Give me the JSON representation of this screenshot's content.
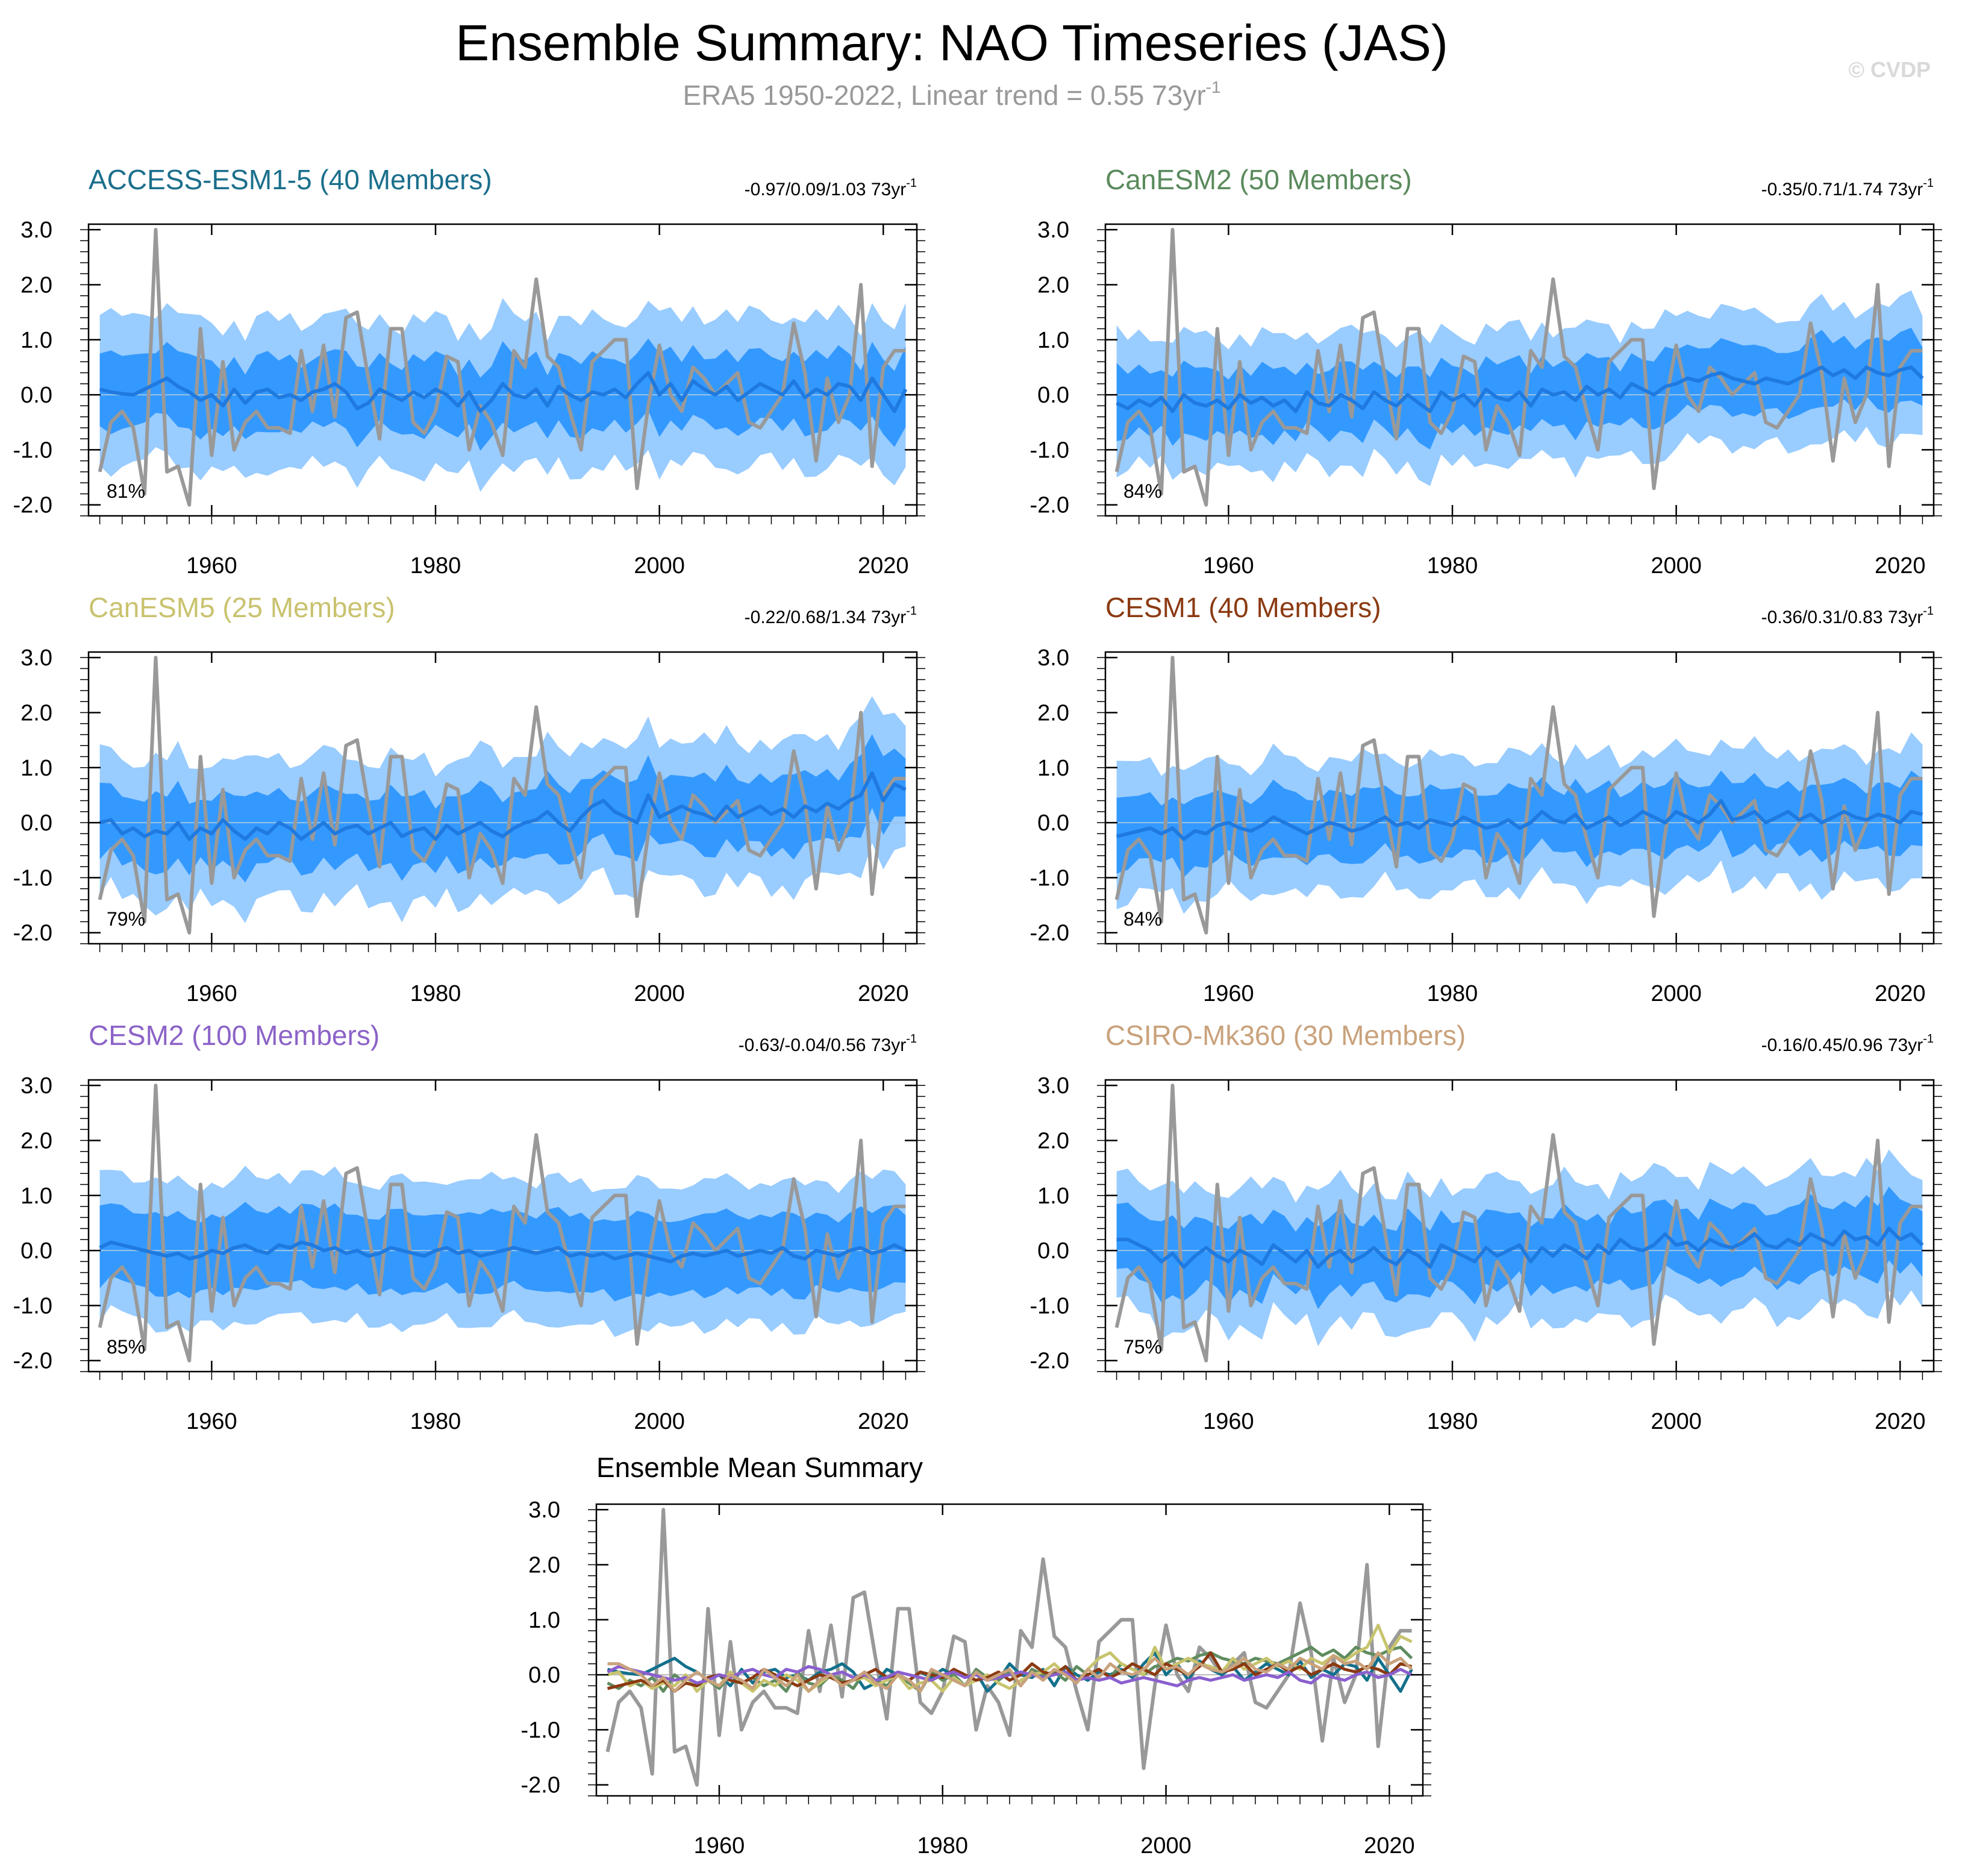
{
  "figure": {
    "title": "Ensemble Summary: NAO Timeseries (JAS)",
    "subtitle_main": "ERA5 1950-2022, Linear trend = 0.55 73yr",
    "subtitle_sup": "-1",
    "copyright": "© CVDP",
    "trend_unit": " 73yr",
    "trend_sup": "-1"
  },
  "colors": {
    "outer_band": "#99ccff",
    "inner_band": "#3399ff",
    "ensemble_mean": "#1f7ae0",
    "observed": "#999999",
    "zero_line": "#9ac3e8"
  },
  "chart_data": [
    {
      "type": "line",
      "title": "ACCESS-ESM1-5 (40 Members)",
      "title_color": "#1b6f8c",
      "line_color": "#13708c",
      "trend_range": "-0.97/0.09/1.03",
      "percent_label": "81%",
      "xlim": [
        1949,
        2023
      ],
      "ylim": [
        -2.2,
        3.1
      ],
      "xticks": [
        "1960",
        "1980",
        "2000",
        "2020"
      ],
      "yticks": [
        "3.0",
        "2.0",
        "1.0",
        "0.0",
        "-1.0",
        "-2.0"
      ],
      "ensemble_mean_base": [
        0.1,
        0.05,
        0.02,
        0.0,
        0.1,
        0.2,
        0.3,
        0.15,
        0.05,
        -0.1,
        0.0,
        -0.2,
        0.1,
        -0.15,
        0.05,
        0.1,
        -0.05,
        0.0,
        -0.1,
        0.05,
        0.1,
        0.2,
        0.05,
        -0.25,
        -0.15,
        0.1,
        0.0,
        -0.1,
        0.05,
        -0.05,
        0.1,
        0.0,
        -0.2,
        0.05,
        -0.3,
        -0.1,
        0.2,
        0.0,
        -0.05,
        0.1,
        -0.2,
        0.15,
        0.0,
        -0.1,
        0.05,
        0.0,
        0.1,
        -0.05,
        0.2,
        0.4,
        0.0,
        0.2,
        -0.1,
        0.25,
        0.1,
        0.0,
        0.15,
        -0.1,
        0.05,
        0.2,
        0.1,
        0.0,
        0.25,
        -0.05,
        0.1,
        0.0,
        0.2,
        0.15,
        -0.1,
        0.3,
        0.0,
        -0.3,
        0.1
      ],
      "outer_half_width": 1.35,
      "inner_half_width": 0.65,
      "band_variation": 0.25,
      "band_phase": 0
    },
    {
      "type": "line",
      "title": "CanESM2 (50 Members)",
      "title_color": "#5a8a5c",
      "line_color": "#5f8c60",
      "trend_range": "-0.35/0.71/1.74",
      "percent_label": "84%",
      "xlim": [
        1949,
        2023
      ],
      "ylim": [
        -2.2,
        3.1
      ],
      "xticks": [
        "1960",
        "1980",
        "2000",
        "2020"
      ],
      "yticks": [
        "3.0",
        "2.0",
        "1.0",
        "0.0",
        "-1.0",
        "-2.0"
      ],
      "ensemble_mean_base": [
        -0.15,
        -0.25,
        -0.1,
        -0.2,
        -0.05,
        -0.3,
        0.0,
        -0.15,
        -0.2,
        -0.1,
        -0.25,
        0.0,
        -0.15,
        -0.05,
        -0.2,
        -0.1,
        -0.3,
        0.05,
        -0.15,
        -0.2,
        0.0,
        -0.1,
        -0.25,
        0.05,
        -0.1,
        -0.2,
        0.0,
        -0.15,
        -0.3,
        0.05,
        -0.1,
        0.0,
        -0.2,
        0.1,
        -0.05,
        -0.1,
        0.05,
        -0.2,
        0.1,
        0.0,
        0.05,
        -0.1,
        0.15,
        0.0,
        0.1,
        -0.05,
        0.2,
        0.1,
        0.0,
        0.15,
        0.2,
        0.3,
        0.25,
        0.35,
        0.4,
        0.3,
        0.25,
        0.2,
        0.3,
        0.25,
        0.2,
        0.3,
        0.4,
        0.5,
        0.35,
        0.45,
        0.3,
        0.5,
        0.4,
        0.35,
        0.45,
        0.5,
        0.3
      ],
      "outer_half_width": 1.2,
      "inner_half_width": 0.6,
      "band_variation": 0.25,
      "band_phase": 1.3
    },
    {
      "type": "line",
      "title": "CanESM5 (25 Members)",
      "title_color": "#c9c26e",
      "line_color": "#c8c46e",
      "trend_range": "-0.22/0.68/1.34",
      "percent_label": "79%",
      "xlim": [
        1949,
        2023
      ],
      "ylim": [
        -2.2,
        3.1
      ],
      "xticks": [
        "1960",
        "1980",
        "2000",
        "2020"
      ],
      "yticks": [
        "3.0",
        "2.0",
        "1.0",
        "0.0",
        "-1.0",
        "-2.0"
      ],
      "ensemble_mean_base": [
        0.0,
        0.05,
        -0.2,
        -0.1,
        -0.25,
        -0.15,
        -0.2,
        0.0,
        -0.3,
        -0.1,
        -0.2,
        0.05,
        -0.15,
        -0.3,
        -0.1,
        -0.2,
        0.0,
        -0.1,
        -0.3,
        -0.15,
        0.0,
        -0.2,
        -0.1,
        -0.05,
        -0.2,
        -0.1,
        0.0,
        -0.25,
        -0.15,
        -0.1,
        -0.3,
        -0.05,
        -0.2,
        -0.1,
        0.0,
        -0.15,
        -0.25,
        -0.1,
        0.0,
        0.05,
        0.2,
        0.0,
        -0.15,
        0.1,
        0.3,
        0.4,
        0.2,
        0.1,
        0.0,
        0.5,
        0.1,
        0.2,
        0.3,
        0.2,
        0.15,
        0.05,
        0.3,
        0.1,
        0.2,
        0.3,
        0.15,
        0.25,
        0.1,
        0.3,
        0.2,
        0.35,
        0.25,
        0.4,
        0.5,
        0.9,
        0.4,
        0.7,
        0.6
      ],
      "outer_half_width": 1.3,
      "inner_half_width": 0.65,
      "band_variation": 0.3,
      "band_phase": 2.1
    },
    {
      "type": "line",
      "title": "CESM1 (40 Members)",
      "title_color": "#8b3a12",
      "line_color": "#8b3a12",
      "trend_range": "-0.36/0.31/0.83",
      "percent_label": "84%",
      "xlim": [
        1949,
        2023
      ],
      "ylim": [
        -2.2,
        3.1
      ],
      "xticks": [
        "1960",
        "1980",
        "2000",
        "2020"
      ],
      "yticks": [
        "3.0",
        "2.0",
        "1.0",
        "0.0",
        "-1.0",
        "-2.0"
      ],
      "ensemble_mean_base": [
        -0.25,
        -0.2,
        -0.15,
        -0.1,
        -0.2,
        -0.1,
        -0.3,
        -0.15,
        -0.2,
        -0.05,
        0.0,
        -0.1,
        -0.15,
        -0.05,
        0.1,
        0.0,
        -0.1,
        -0.2,
        -0.1,
        0.0,
        -0.05,
        -0.15,
        -0.1,
        0.0,
        0.1,
        -0.05,
        0.0,
        -0.1,
        0.05,
        0.0,
        -0.05,
        0.1,
        0.0,
        -0.1,
        -0.05,
        0.05,
        -0.1,
        0.0,
        0.2,
        0.05,
        0.0,
        0.15,
        -0.1,
        0.0,
        0.1,
        -0.05,
        0.05,
        0.2,
        0.1,
        0.0,
        0.2,
        0.1,
        0.0,
        0.15,
        0.4,
        0.05,
        0.1,
        0.2,
        0.0,
        0.1,
        0.2,
        0.05,
        0.15,
        0.0,
        0.1,
        0.2,
        0.1,
        0.05,
        0.15,
        0.1,
        0.0,
        0.2,
        0.15
      ],
      "outer_half_width": 1.2,
      "inner_half_width": 0.6,
      "band_variation": 0.25,
      "band_phase": 0.7
    },
    {
      "type": "line",
      "title": "CESM2 (100 Members)",
      "title_color": "#8c63c8",
      "line_color": "#8a5fcf",
      "trend_range": "-0.63/-0.04/0.56",
      "percent_label": "85%",
      "xlim": [
        1949,
        2023
      ],
      "ylim": [
        -2.2,
        3.1
      ],
      "xticks": [
        "1960",
        "1980",
        "2000",
        "2020"
      ],
      "yticks": [
        "3.0",
        "2.0",
        "1.0",
        "0.0",
        "-1.0",
        "-2.0"
      ],
      "ensemble_mean_base": [
        0.05,
        0.15,
        0.1,
        0.05,
        0.0,
        -0.05,
        -0.1,
        -0.05,
        -0.15,
        -0.1,
        0.0,
        -0.05,
        0.05,
        0.1,
        0.0,
        -0.05,
        0.1,
        0.05,
        0.15,
        0.1,
        0.0,
        0.05,
        -0.05,
        0.0,
        -0.1,
        -0.05,
        0.05,
        0.0,
        -0.05,
        -0.1,
        0.0,
        0.05,
        -0.05,
        0.0,
        -0.1,
        -0.05,
        0.0,
        0.05,
        0.0,
        -0.05,
        0.0,
        0.05,
        -0.1,
        -0.05,
        -0.1,
        -0.05,
        -0.15,
        -0.1,
        -0.05,
        -0.1,
        -0.15,
        -0.2,
        -0.1,
        -0.05,
        -0.1,
        -0.05,
        0.0,
        -0.1,
        -0.05,
        0.0,
        -0.05,
        0.05,
        -0.1,
        -0.15,
        0.0,
        -0.05,
        -0.1,
        0.0,
        0.05,
        -0.05,
        0.0,
        0.1,
        0.0
      ],
      "outer_half_width": 1.3,
      "inner_half_width": 0.7,
      "band_variation": 0.2,
      "band_phase": 1.9
    },
    {
      "type": "line",
      "title": "CSIRO-Mk360 (30 Members)",
      "title_color": "#c9a27c",
      "line_color": "#c9a27c",
      "trend_range": "-0.16/0.45/0.96",
      "percent_label": "75%",
      "xlim": [
        1949,
        2023
      ],
      "ylim": [
        -2.2,
        3.1
      ],
      "xticks": [
        "1960",
        "1980",
        "2000",
        "2020"
      ],
      "yticks": [
        "3.0",
        "2.0",
        "1.0",
        "0.0",
        "-1.0",
        "-2.0"
      ],
      "ensemble_mean_base": [
        0.2,
        0.2,
        0.1,
        0.0,
        -0.2,
        -0.05,
        -0.3,
        -0.1,
        0.05,
        -0.1,
        -0.2,
        0.0,
        -0.1,
        -0.25,
        0.1,
        -0.05,
        -0.2,
        0.0,
        -0.3,
        -0.1,
        0.0,
        -0.2,
        -0.1,
        0.05,
        -0.15,
        -0.25,
        0.0,
        -0.1,
        -0.3,
        0.1,
        0.0,
        -0.1,
        -0.2,
        0.05,
        -0.1,
        0.0,
        0.1,
        -0.2,
        0.05,
        -0.1,
        0.1,
        0.0,
        -0.15,
        0.1,
        -0.05,
        0.2,
        0.05,
        0.0,
        0.1,
        0.3,
        0.1,
        0.15,
        0.0,
        0.2,
        0.1,
        0.05,
        0.15,
        0.3,
        0.1,
        0.05,
        0.2,
        0.1,
        0.3,
        0.2,
        0.1,
        0.35,
        0.2,
        0.25,
        0.1,
        0.4,
        0.2,
        0.3,
        0.1
      ],
      "outer_half_width": 1.25,
      "inner_half_width": 0.65,
      "band_variation": 0.3,
      "band_phase": 2.8
    },
    {
      "type": "line",
      "title": "Ensemble Mean Summary",
      "title_color": "#000000",
      "xlim": [
        1949,
        2023
      ],
      "ylim": [
        -2.2,
        3.1
      ],
      "xticks": [
        "1960",
        "1980",
        "2000",
        "2020"
      ],
      "yticks": [
        "3.0",
        "2.0",
        "1.0",
        "0.0",
        "-1.0",
        "-2.0"
      ],
      "series": [
        "ACCESS-ESM1-5",
        "CanESM2",
        "CanESM5",
        "CESM1",
        "CESM2",
        "CSIRO-Mk360",
        "ERA5"
      ]
    }
  ],
  "observed": {
    "name": "ERA5",
    "years": [
      1950,
      2022
    ],
    "values": [
      -1.4,
      -0.5,
      -0.3,
      -0.6,
      -1.8,
      3.0,
      -1.4,
      -1.3,
      -2.0,
      1.2,
      -1.1,
      0.6,
      -1.0,
      -0.5,
      -0.3,
      -0.6,
      -0.6,
      -0.7,
      0.8,
      -0.3,
      0.9,
      -0.4,
      1.4,
      1.5,
      0.3,
      -0.8,
      1.2,
      1.2,
      -0.5,
      -0.7,
      -0.3,
      0.7,
      0.6,
      -1.0,
      -0.2,
      -0.5,
      -1.1,
      0.8,
      0.5,
      2.1,
      0.7,
      0.5,
      -0.3,
      -1.0,
      0.6,
      0.8,
      1.0,
      1.0,
      -1.7,
      -0.2,
      0.9,
      0.0,
      -0.3,
      0.5,
      0.3,
      0.0,
      0.2,
      0.4,
      -0.5,
      -0.6,
      -0.3,
      0.0,
      1.3,
      0.4,
      -1.2,
      0.3,
      -0.5,
      0.0,
      2.0,
      -1.3,
      0.5,
      0.8,
      0.8
    ]
  }
}
